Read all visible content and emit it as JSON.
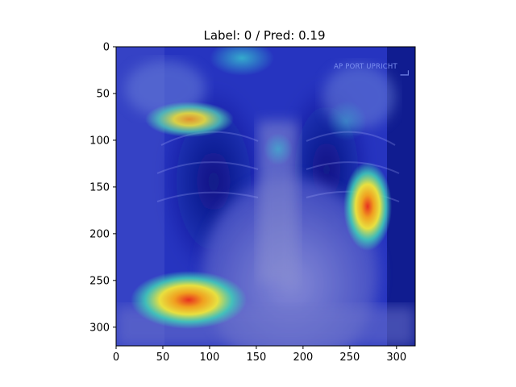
{
  "figure": {
    "title": "Label: 0 / Pred: 0.19",
    "image_marker_text": "AP PORT UPRICHT",
    "side_marker_text": "L"
  },
  "axes": {
    "x_ticks": [
      0,
      50,
      100,
      150,
      200,
      250,
      300
    ],
    "y_ticks": [
      0,
      50,
      100,
      150,
      200,
      250,
      300
    ],
    "xlim": [
      0,
      320
    ],
    "ylim": [
      320,
      0
    ]
  },
  "heatmap": {
    "colormap": "jet",
    "hotspots": [
      {
        "x": 78,
        "y": 78,
        "level": 0.8
      },
      {
        "x": 270,
        "y": 170,
        "level": 1.0
      },
      {
        "x": 78,
        "y": 272,
        "level": 1.0
      }
    ]
  },
  "colors": {
    "background_overlay": "#1a2cb8",
    "hotspot_core": "#e83020",
    "hotspot_mid": "#f0e030",
    "hotspot_edge": "#30d0c0"
  }
}
